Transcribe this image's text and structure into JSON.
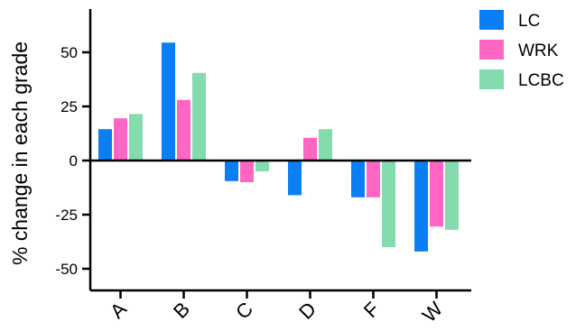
{
  "chart_data": {
    "type": "bar",
    "title": "",
    "xlabel": "",
    "ylabel": "% change in each grade",
    "categories": [
      "A",
      "B",
      "C",
      "D",
      "F",
      "W"
    ],
    "ylim": [
      -60,
      70
    ],
    "yticks": [
      50,
      25,
      0,
      -25,
      -50
    ],
    "ytick_labels": [
      "50",
      "25",
      "0",
      "-25",
      "-50"
    ],
    "grid": false,
    "legend_position": "top-right",
    "series": [
      {
        "name": "LC",
        "color": "#0a7ff5",
        "values": [
          14.5,
          54.5,
          -9.5,
          -16,
          -17,
          -42
        ]
      },
      {
        "name": "WRK",
        "color": "#ff66c4",
        "values": [
          19.5,
          28,
          -10,
          10.5,
          -17,
          -30.5
        ]
      },
      {
        "name": "LCBC",
        "color": "#84dbae",
        "values": [
          21.5,
          40.5,
          -5,
          14.5,
          -40,
          -32
        ]
      }
    ]
  }
}
